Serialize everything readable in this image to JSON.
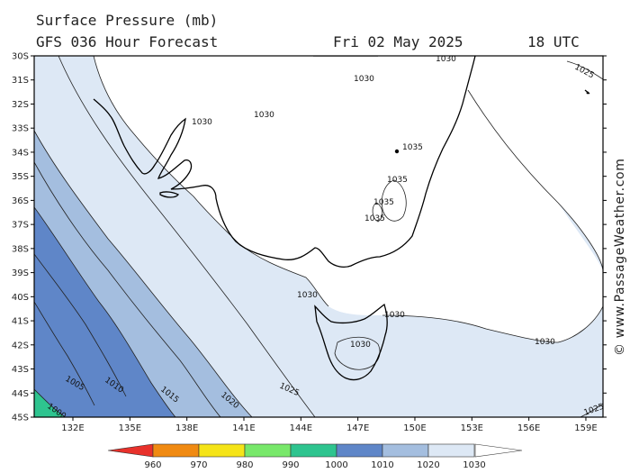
{
  "header": {
    "title": "Surface Pressure (mb)",
    "model": "GFS 036 Hour Forecast",
    "date": "Fri 02 May 2025",
    "time": "18 UTC"
  },
  "credit": "© www.PassageWeather.com",
  "axes": {
    "lat_labels": [
      "30S",
      "31S",
      "32S",
      "33S",
      "34S",
      "35S",
      "36S",
      "37S",
      "38S",
      "39S",
      "40S",
      "41S",
      "42S",
      "43S",
      "44S",
      "45S"
    ],
    "lon_labels": [
      "132E",
      "135E",
      "138E",
      "141E",
      "144E",
      "147E",
      "150E",
      "153E",
      "156E",
      "159E"
    ]
  },
  "isobar_labels": {
    "l1030_top": "1030",
    "l1030_a": "1030",
    "l1030_b": "1030",
    "l1030_c": "1030",
    "l1030_d": "1030",
    "l1030_e": "1030",
    "l1030_f": "1030",
    "l1030_g": "1030",
    "l1035_a": "1035",
    "l1035_b": "1035",
    "l1035_c": "1035",
    "l1035_d": "1035",
    "l1025_ne": "1025",
    "l1025_sw": "1025",
    "l1025_se": "1025",
    "l1020": "1020",
    "l1015": "1015",
    "l1010": "1010",
    "l1005": "1005",
    "l1000": "1000"
  },
  "legend": {
    "labels": [
      "960",
      "970",
      "980",
      "990",
      "1000",
      "1010",
      "1020",
      "1030"
    ],
    "colors": [
      "#e8312b",
      "#f08a12",
      "#f5e418",
      "#78e86a",
      "#2ec48f",
      "#5f86c8",
      "#a4bedf",
      "#dde8f5"
    ]
  },
  "colors": {
    "band_ge_1030": "#ffffff",
    "band_1020_1030": "#dde8f5",
    "band_1010_1020": "#a4bedf",
    "band_1000_1010": "#5f86c8",
    "band_lt_1000": "#2ec48f"
  }
}
